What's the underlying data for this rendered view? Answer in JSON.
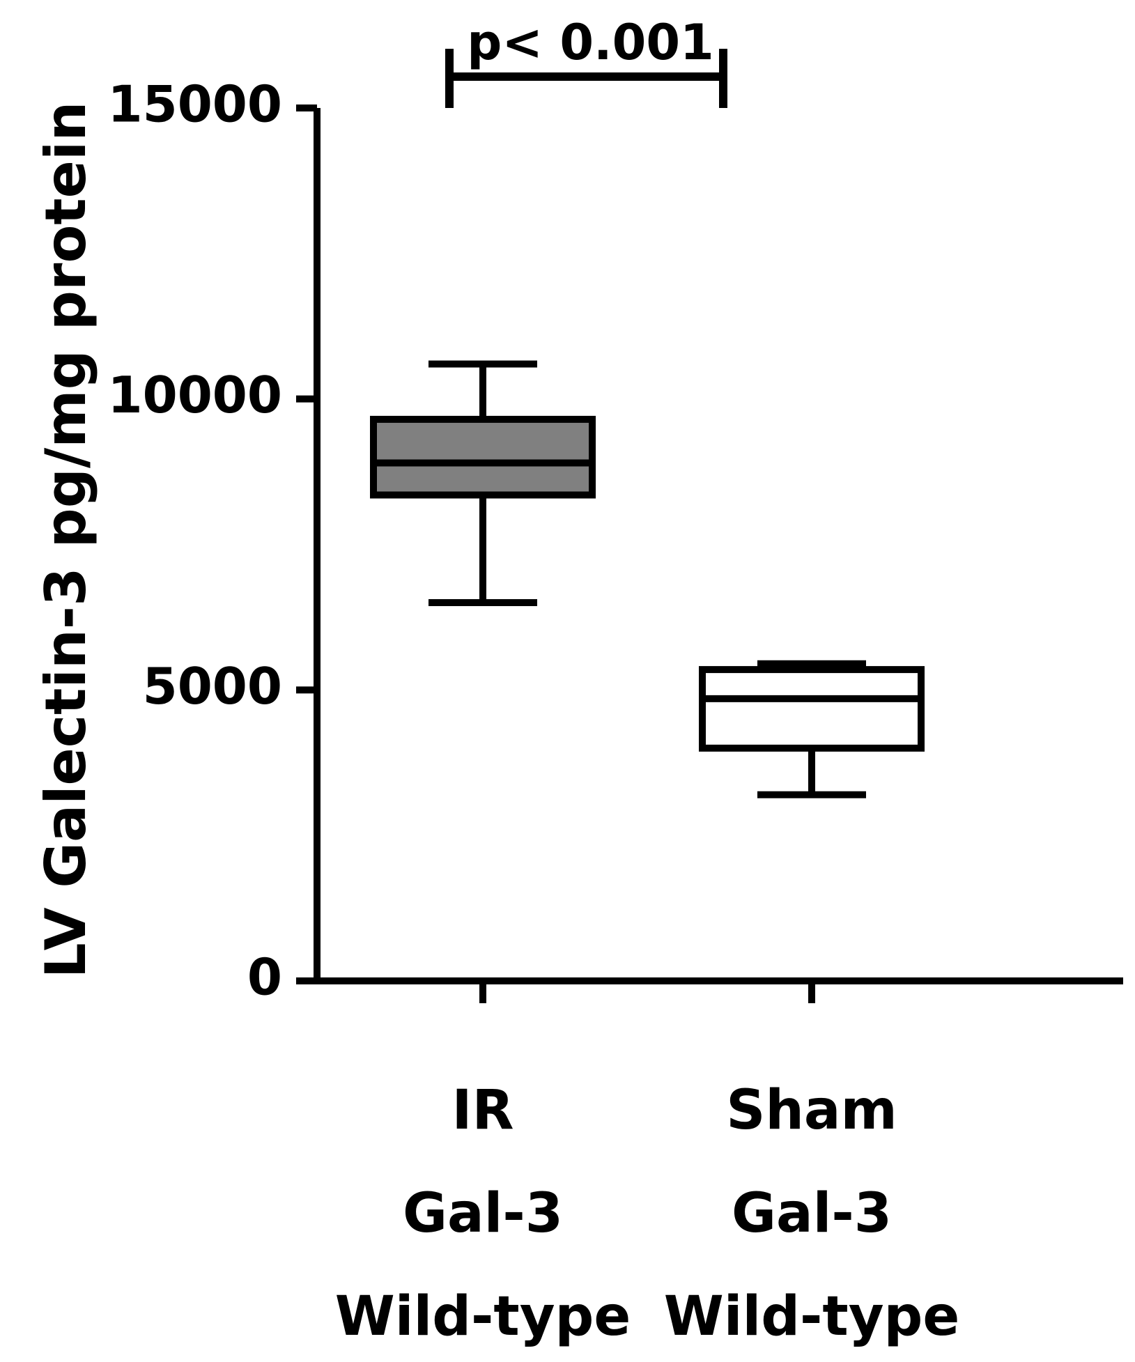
{
  "chart_data": {
    "type": "box",
    "ylabel": "LV Galectin-3 pg/mg protein",
    "ylim": [
      0,
      15000
    ],
    "yticks": [
      "0",
      "5000",
      "10000",
      "15000"
    ],
    "categories": [
      [
        "IR",
        "Gal-3",
        "Wild-type"
      ],
      [
        "Sham",
        "Gal-3",
        "Wild-type"
      ]
    ],
    "boxes": [
      {
        "min": 6500,
        "q1": 8350,
        "median": 8900,
        "q3": 9650,
        "max": 10600,
        "fill": "#808080"
      },
      {
        "min": 3200,
        "q1": 4000,
        "median": 4850,
        "q3": 5350,
        "max": 5450,
        "fill": "#ffffff"
      }
    ],
    "annotation": {
      "text": "p< 0.001",
      "between": [
        0,
        1
      ]
    }
  }
}
